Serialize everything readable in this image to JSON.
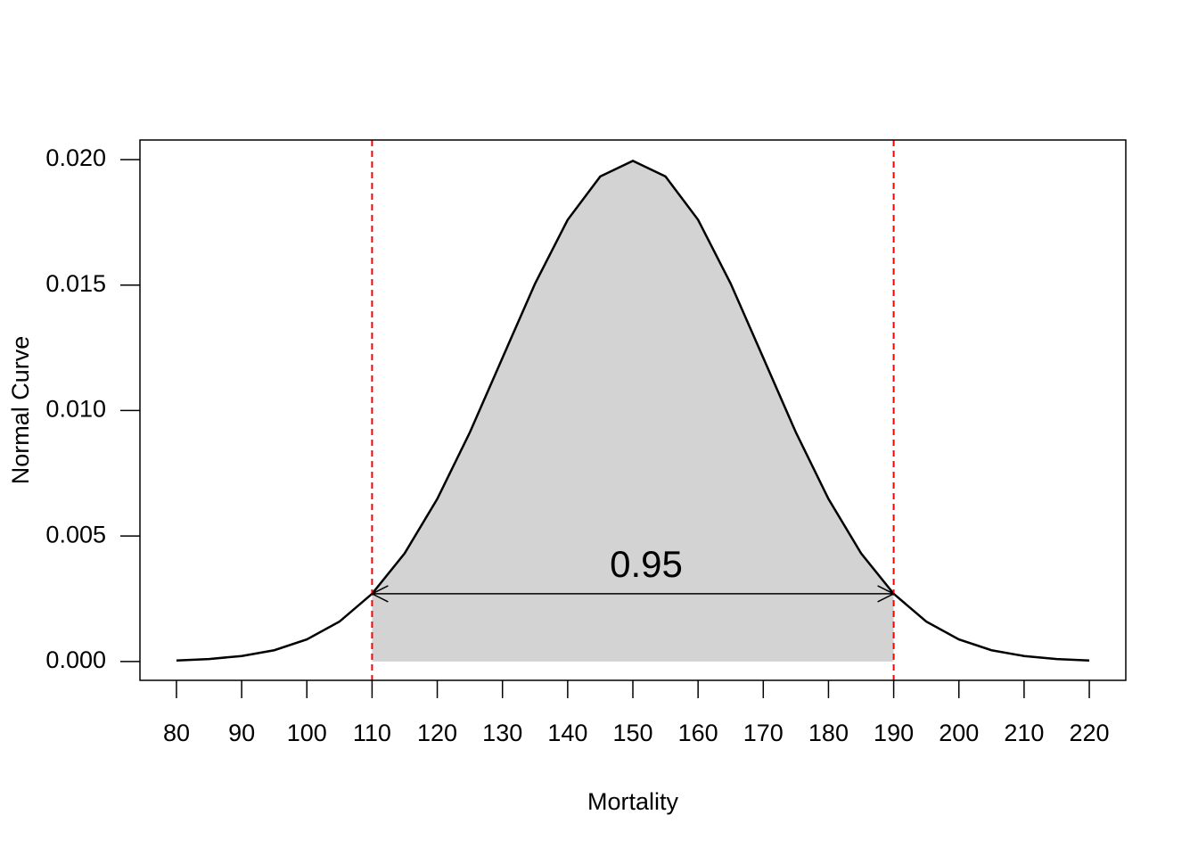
{
  "chart_data": {
    "type": "line",
    "xlabel": "Mortality",
    "ylabel": "Normal Curve",
    "x": [
      80,
      85,
      90,
      95,
      100,
      105,
      110,
      115,
      120,
      125,
      130,
      135,
      140,
      145,
      150,
      155,
      160,
      165,
      170,
      175,
      180,
      185,
      190,
      195,
      200,
      205,
      210,
      215,
      220
    ],
    "series": [
      {
        "name": "Normal Curve",
        "color": "#000000",
        "values": [
          4e-05,
          0.0001,
          0.00022,
          0.00045,
          0.00088,
          0.00159,
          0.0027,
          0.00431,
          0.00648,
          0.00913,
          0.0121,
          0.01506,
          0.0176,
          0.01933,
          0.01995,
          0.01933,
          0.0176,
          0.01506,
          0.0121,
          0.00913,
          0.00648,
          0.00431,
          0.0027,
          0.00159,
          0.00088,
          0.00045,
          0.00022,
          0.0001,
          4e-05
        ]
      }
    ],
    "shade_color": "#d3d3d3",
    "vlines": [
      110,
      190
    ],
    "vline_color": "#ff0000",
    "annotation": "0.95",
    "xlim": [
      74.4,
      225.6
    ],
    "ylim": [
      -0.00075,
      0.02078
    ],
    "xticks": [
      80,
      90,
      100,
      110,
      120,
      130,
      140,
      150,
      160,
      170,
      180,
      190,
      200,
      210,
      220
    ],
    "yticks": [
      {
        "value": 0,
        "label": "0.000"
      },
      {
        "value": 0.005,
        "label": "0.005"
      },
      {
        "value": 0.01,
        "label": "0.010"
      },
      {
        "value": 0.015,
        "label": "0.015"
      },
      {
        "value": 0.02,
        "label": "0.020"
      }
    ],
    "grid": false
  }
}
